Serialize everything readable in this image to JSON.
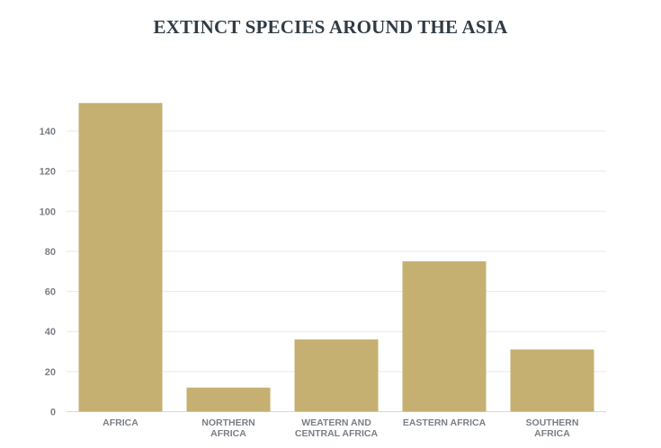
{
  "title": "EXTINCT SPECIES AROUND THE ASIA",
  "chart_data": {
    "type": "bar",
    "title": "EXTINCT SPECIES AROUND THE ASIA",
    "categories": [
      [
        "AFRICA"
      ],
      [
        "NORTHERN",
        "AFRICA"
      ],
      [
        "WEATERN AND",
        "CENTRAL AFRICA"
      ],
      [
        "EASTERN AFRICA"
      ],
      [
        "SOUTHERN",
        "AFRICA"
      ]
    ],
    "values": [
      154,
      12,
      36,
      75,
      31
    ],
    "yticks": [
      0,
      20,
      40,
      60,
      80,
      100,
      120,
      140
    ],
    "ylim": [
      0,
      160
    ],
    "grid": true,
    "bar_color": "#c5b071",
    "grid_color": "#e9e9e9",
    "axis_color": "#d8d8d8"
  }
}
